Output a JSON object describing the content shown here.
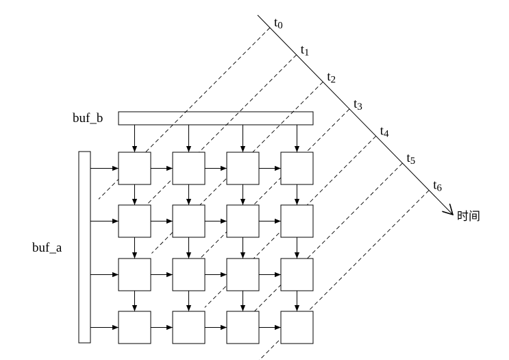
{
  "labels": {
    "buf_b": "buf_b",
    "buf_a": "buf_a",
    "time_axis": "时间"
  },
  "time_ticks": [
    {
      "base": "t",
      "sub": "0"
    },
    {
      "base": "t",
      "sub": "1"
    },
    {
      "base": "t",
      "sub": "2"
    },
    {
      "base": "t",
      "sub": "3"
    },
    {
      "base": "t",
      "sub": "4"
    },
    {
      "base": "t",
      "sub": "5"
    },
    {
      "base": "t",
      "sub": "6"
    }
  ],
  "grid": {
    "rows": 4,
    "cols": 4
  }
}
